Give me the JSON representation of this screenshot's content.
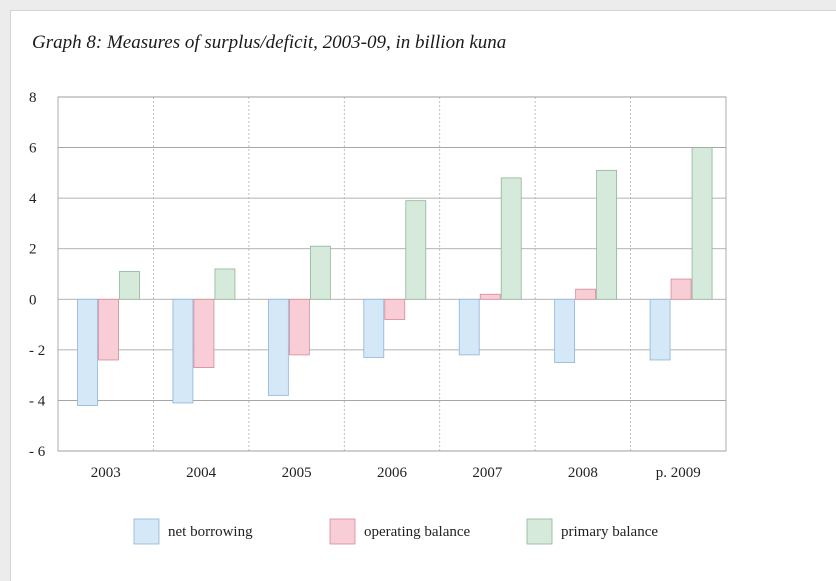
{
  "chart_data": {
    "type": "bar",
    "title": "Graph 8: Measures of surplus/deficit, 2003-09, in billion kuna",
    "xlabel": "",
    "ylabel": "",
    "categories": [
      "2003",
      "2004",
      "2005",
      "2006",
      "2007",
      "2008",
      "p. 2009"
    ],
    "ylim": [
      -6,
      8
    ],
    "yticks": [
      8,
      6,
      4,
      2,
      0,
      -2,
      -4,
      -6
    ],
    "ytick_labels": [
      "8",
      "6",
      "4",
      "2",
      "0",
      "- 2",
      "- 4",
      "- 6"
    ],
    "grid": "horizontal solid, vertical dotted",
    "legend_position": "bottom",
    "series": [
      {
        "name": "net borrowing",
        "color": "#d4e8f8",
        "stroke": "#8fb4d6",
        "values": [
          -4.2,
          -4.1,
          -3.8,
          -2.3,
          -2.2,
          -2.5,
          -2.4
        ]
      },
      {
        "name": "operating balance",
        "color": "#f9cdd6",
        "stroke": "#d48a99",
        "values": [
          -2.4,
          -2.7,
          -2.2,
          -0.8,
          0.2,
          0.4,
          0.8
        ]
      },
      {
        "name": "primary balance",
        "color": "#d6eadb",
        "stroke": "#8fb59a",
        "values": [
          1.1,
          1.2,
          2.1,
          3.9,
          4.8,
          5.1,
          6.0
        ]
      }
    ]
  }
}
